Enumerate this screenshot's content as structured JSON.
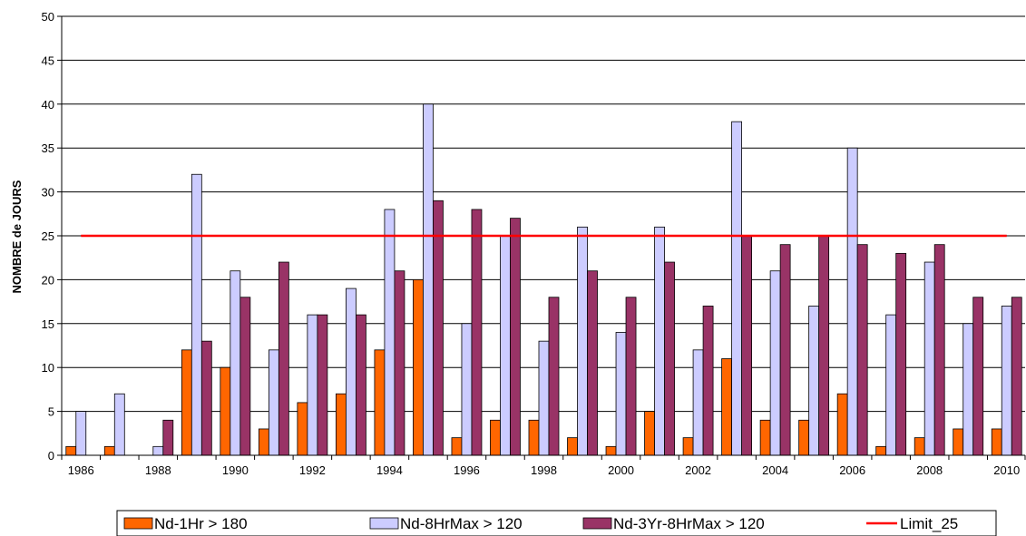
{
  "chart_data": {
    "type": "bar",
    "title": "",
    "xlabel": "",
    "ylabel": "NOMBRE de JOURS",
    "ylim": [
      0,
      50
    ],
    "y_ticks": [
      0,
      5,
      10,
      15,
      20,
      25,
      30,
      35,
      40,
      45,
      50
    ],
    "grid": true,
    "legend_position": "bottom",
    "categories": [
      "1986",
      "1987",
      "1988",
      "1989",
      "1990",
      "1991",
      "1992",
      "1993",
      "1994",
      "1995",
      "1996",
      "1997",
      "1998",
      "1999",
      "2000",
      "2001",
      "2002",
      "2003",
      "2004",
      "2005",
      "2006",
      "2007",
      "2008",
      "2009",
      "2010"
    ],
    "x_tick_labels": [
      "1986",
      "1988",
      "1990",
      "1992",
      "1994",
      "1996",
      "1998",
      "2000",
      "2002",
      "2004",
      "2006",
      "2008",
      "2010"
    ],
    "series": [
      {
        "name": "Nd-1Hr > 180",
        "color": "#FF6600",
        "values": [
          1,
          1,
          0,
          12,
          10,
          3,
          6,
          7,
          12,
          20,
          2,
          4,
          4,
          2,
          1,
          5,
          2,
          11,
          4,
          4,
          7,
          1,
          2,
          3,
          3
        ]
      },
      {
        "name": "Nd-8HrMax > 120",
        "color": "#CCCCFF",
        "values": [
          5,
          7,
          1,
          32,
          21,
          12,
          16,
          19,
          28,
          40,
          15,
          25,
          13,
          26,
          14,
          26,
          12,
          38,
          21,
          17,
          35,
          16,
          22,
          15,
          17
        ]
      },
      {
        "name": "Nd-3Yr-8HrMax > 120",
        "color": "#993366",
        "values": [
          0,
          0,
          4,
          13,
          18,
          22,
          16,
          16,
          21,
          29,
          28,
          27,
          18,
          21,
          18,
          22,
          17,
          25,
          24,
          25,
          24,
          23,
          24,
          18,
          18
        ]
      }
    ],
    "reference_line": {
      "name": "Limit_25",
      "value": 25,
      "color": "#FF0000"
    }
  }
}
